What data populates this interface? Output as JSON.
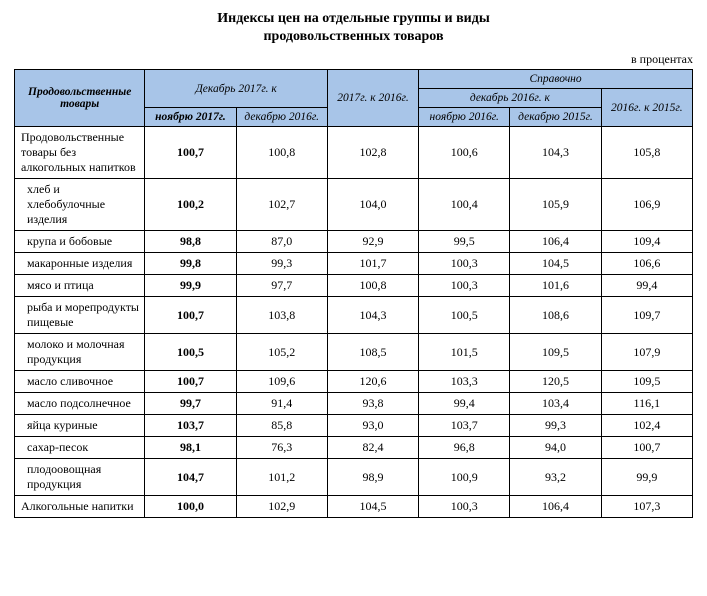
{
  "title_line1": "Индексы цен на отдельные группы и виды",
  "title_line2": "продовольственных товаров",
  "unit": "в процентах",
  "header": {
    "goods": "Продовольственные товары",
    "dec2017_to": "Декабрь 2017г. к",
    "y2017_to_2016": "2017г. к 2016г.",
    "reference": "Справочно",
    "dec2016_to": "декабрь 2016г. к",
    "y2016_to_2015": "2016г. к 2015г.",
    "nov2017": "ноябрю 2017г.",
    "dec2016": "декабрю 2016г.",
    "nov2016": "ноябрю 2016г.",
    "dec2015": "декабрю 2015г."
  },
  "rows": [
    {
      "label": "Продовольственные товары без алкогольных напитков",
      "indent": false,
      "v": [
        "100,7",
        "100,8",
        "102,8",
        "100,6",
        "104,3",
        "105,8"
      ]
    },
    {
      "label": "хлеб и хлебобулочные изделия",
      "indent": true,
      "v": [
        "100,2",
        "102,7",
        "104,0",
        "100,4",
        "105,9",
        "106,9"
      ]
    },
    {
      "label": "крупа и бобовые",
      "indent": true,
      "v": [
        "98,8",
        "87,0",
        "92,9",
        "99,5",
        "106,4",
        "109,4"
      ]
    },
    {
      "label": "макаронные изделия",
      "indent": true,
      "v": [
        "99,8",
        "99,3",
        "101,7",
        "100,3",
        "104,5",
        "106,6"
      ]
    },
    {
      "label": "мясо и птица",
      "indent": true,
      "v": [
        "99,9",
        "97,7",
        "100,8",
        "100,3",
        "101,6",
        "99,4"
      ]
    },
    {
      "label": "рыба и морепродукты пищевые",
      "indent": true,
      "v": [
        "100,7",
        "103,8",
        "104,3",
        "100,5",
        "108,6",
        "109,7"
      ]
    },
    {
      "label": "молоко и молочная продукция",
      "indent": true,
      "v": [
        "100,5",
        "105,2",
        "108,5",
        "101,5",
        "109,5",
        "107,9"
      ]
    },
    {
      "label": "масло сливочное",
      "indent": true,
      "v": [
        "100,7",
        "109,6",
        "120,6",
        "103,3",
        "120,5",
        "109,5"
      ]
    },
    {
      "label": "масло подсолнечное",
      "indent": true,
      "v": [
        "99,7",
        "91,4",
        "93,8",
        "99,4",
        "103,4",
        "116,1"
      ]
    },
    {
      "label": "яйца куриные",
      "indent": true,
      "v": [
        "103,7",
        "85,8",
        "93,0",
        "103,7",
        "99,3",
        "102,4"
      ]
    },
    {
      "label": "сахар-песок",
      "indent": true,
      "v": [
        "98,1",
        "76,3",
        "82,4",
        "96,8",
        "94,0",
        "100,7"
      ]
    },
    {
      "label": "плодоовощная продукция",
      "indent": true,
      "v": [
        "104,7",
        "101,2",
        "98,9",
        "100,9",
        "93,2",
        "99,9"
      ]
    },
    {
      "label": "Алкогольные напитки",
      "indent": false,
      "v": [
        "100,0",
        "102,9",
        "104,5",
        "100,3",
        "106,4",
        "107,3"
      ]
    }
  ]
}
